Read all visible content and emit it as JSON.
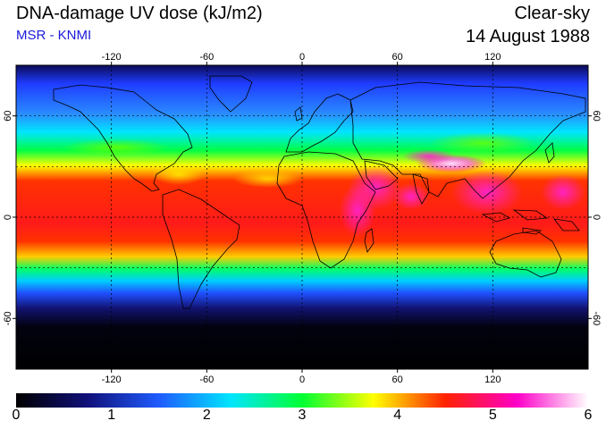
{
  "header": {
    "title": "DNA-damage UV dose (kJ/m2)",
    "subtitle": "MSR - KNMI",
    "mode": "Clear-sky",
    "date": "14 August 1988"
  },
  "map": {
    "projection": "equirectangular",
    "lon_range": [
      -180,
      180
    ],
    "lat_range": [
      -90,
      90
    ],
    "lon_ticks": [
      "-120",
      "-60",
      "0",
      "60",
      "120"
    ],
    "lat_ticks": [
      "60",
      "0",
      "-60"
    ],
    "gridlines": "dashed",
    "grid_lats": [
      -30,
      0,
      30,
      60
    ],
    "grid_lons": [
      -120,
      -60,
      0,
      60,
      120
    ]
  },
  "colorbar": {
    "ticks": [
      "0",
      "1",
      "2",
      "3",
      "4",
      "5",
      "6"
    ],
    "range": [
      0,
      6
    ],
    "stops": [
      "#000000",
      "#10107a",
      "#1f5cff",
      "#00e5ff",
      "#00ff33",
      "#ffff00",
      "#ff2200",
      "#ff00c8",
      "#ffffff"
    ]
  }
}
